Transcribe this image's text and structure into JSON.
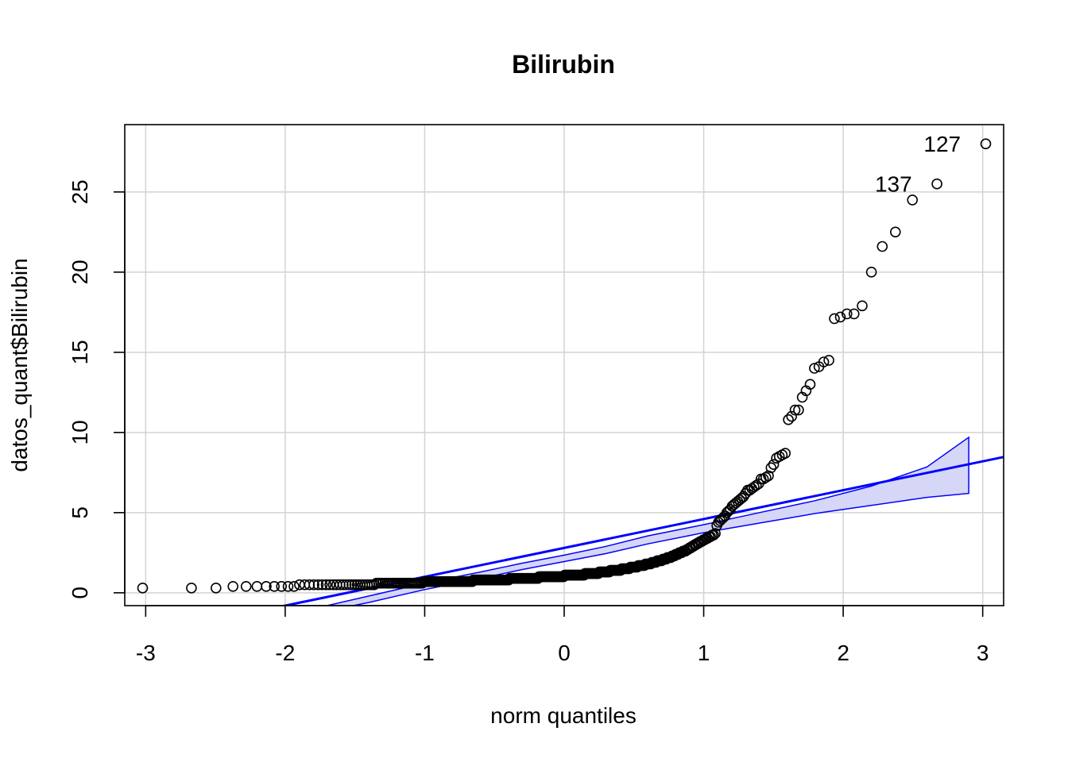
{
  "chart_data": {
    "type": "scatter",
    "title": "Bilirubin",
    "xlabel": "norm quantiles",
    "ylabel": "datos_quant$Bilirubin",
    "xlim": [
      -3.15,
      3.15
    ],
    "ylim": [
      -0.8,
      29.2
    ],
    "x_ticks": [
      -3,
      -2,
      -1,
      0,
      1,
      2,
      3
    ],
    "y_ticks": [
      0,
      5,
      10,
      15,
      20,
      25
    ],
    "x_tick_labels": [
      "-3",
      "-2",
      "-1",
      "0",
      "1",
      "2",
      "3"
    ],
    "y_tick_labels": [
      "0",
      "5",
      "10",
      "15",
      "20",
      "25"
    ],
    "grid": true,
    "sample_size": 418,
    "sample_quantiles": [
      0.3,
      0.3,
      0.3,
      0.4,
      0.4,
      0.4,
      0.4,
      0.4,
      0.4,
      0.4,
      0.4,
      0.5,
      0.5,
      0.5,
      0.5,
      0.5,
      0.5,
      0.5,
      0.5,
      0.5,
      0.5,
      0.5,
      0.5,
      0.5,
      0.5,
      0.5,
      0.5,
      0.5,
      0.5,
      0.5,
      0.5,
      0.5,
      0.5,
      0.5,
      0.5,
      0.6,
      0.6,
      0.6,
      0.6,
      0.6,
      0.6,
      0.6,
      0.6,
      0.6,
      0.6,
      0.6,
      0.6,
      0.6,
      0.6,
      0.6,
      0.6,
      0.6,
      0.6,
      0.6,
      0.6,
      0.6,
      0.6,
      0.6,
      0.6,
      0.6,
      0.6,
      0.6,
      0.7,
      0.7,
      0.7,
      0.7,
      0.7,
      0.7,
      0.7,
      0.7,
      0.7,
      0.7,
      0.7,
      0.7,
      0.7,
      0.7,
      0.7,
      0.7,
      0.7,
      0.7,
      0.7,
      0.7,
      0.7,
      0.7,
      0.7,
      0.7,
      0.7,
      0.7,
      0.7,
      0.7,
      0.7,
      0.7,
      0.7,
      0.7,
      0.7,
      0.7,
      0.7,
      0.7,
      0.7,
      0.7,
      0.7,
      0.7,
      0.8,
      0.8,
      0.8,
      0.8,
      0.8,
      0.8,
      0.8,
      0.8,
      0.8,
      0.8,
      0.8,
      0.8,
      0.8,
      0.8,
      0.8,
      0.8,
      0.8,
      0.8,
      0.8,
      0.8,
      0.8,
      0.8,
      0.8,
      0.8,
      0.8,
      0.8,
      0.8,
      0.8,
      0.8,
      0.8,
      0.8,
      0.8,
      0.8,
      0.8,
      0.8,
      0.8,
      0.9,
      0.9,
      0.9,
      0.9,
      0.9,
      0.9,
      0.9,
      0.9,
      0.9,
      0.9,
      0.9,
      0.9,
      0.9,
      0.9,
      0.9,
      0.9,
      0.9,
      0.9,
      0.9,
      0.9,
      0.9,
      0.9,
      0.9,
      0.9,
      0.9,
      0.9,
      0.9,
      0.9,
      0.9,
      0.9,
      0.9,
      0.9,
      1.0,
      1.0,
      1.0,
      1.0,
      1.0,
      1.0,
      1.0,
      1.0,
      1.0,
      1.0,
      1.0,
      1.0,
      1.0,
      1.0,
      1.0,
      1.0,
      1.0,
      1.0,
      1.0,
      1.0,
      1.0,
      1.0,
      1.0,
      1.0,
      1.0,
      1.0,
      1.0,
      1.0,
      1.0,
      1.1,
      1.1,
      1.1,
      1.1,
      1.1,
      1.1,
      1.1,
      1.1,
      1.1,
      1.1,
      1.1,
      1.1,
      1.1,
      1.1,
      1.1,
      1.1,
      1.1,
      1.1,
      1.1,
      1.1,
      1.1,
      1.1,
      1.1,
      1.2,
      1.2,
      1.2,
      1.2,
      1.2,
      1.2,
      1.2,
      1.2,
      1.2,
      1.2,
      1.2,
      1.2,
      1.2,
      1.2,
      1.2,
      1.2,
      1.3,
      1.3,
      1.3,
      1.3,
      1.3,
      1.3,
      1.3,
      1.3,
      1.3,
      1.3,
      1.3,
      1.3,
      1.4,
      1.4,
      1.4,
      1.4,
      1.4,
      1.4,
      1.4,
      1.4,
      1.4,
      1.4,
      1.4,
      1.4,
      1.5,
      1.5,
      1.5,
      1.5,
      1.5,
      1.5,
      1.5,
      1.5,
      1.5,
      1.6,
      1.6,
      1.6,
      1.6,
      1.6,
      1.6,
      1.6,
      1.6,
      1.7,
      1.7,
      1.7,
      1.7,
      1.7,
      1.7,
      1.7,
      1.8,
      1.8,
      1.8,
      1.8,
      1.8,
      1.8,
      1.9,
      1.9,
      1.9,
      1.9,
      1.9,
      2.0,
      2.0,
      2.0,
      2.0,
      2.0,
      2.1,
      2.1,
      2.1,
      2.1,
      2.2,
      2.2,
      2.2,
      2.2,
      2.3,
      2.3,
      2.3,
      2.4,
      2.4,
      2.4,
      2.5,
      2.5,
      2.5,
      2.6,
      2.6,
      2.6,
      2.7,
      2.7,
      2.8,
      2.8,
      2.9,
      2.9,
      3.0,
      3.0,
      3.1,
      3.1,
      3.2,
      3.2,
      3.3,
      3.3,
      3.4,
      3.4,
      3.5,
      3.5,
      3.6,
      3.6,
      3.7,
      4.2,
      4.4,
      4.5,
      4.6,
      4.7,
      4.8,
      5.0,
      5.1,
      5.2,
      5.4,
      5.5,
      5.6,
      5.7,
      5.8,
      5.9,
      6.0,
      6.2,
      6.4,
      6.4,
      6.5,
      6.6,
      6.7,
      6.8,
      7.1,
      7.1,
      7.2,
      7.3,
      7.8,
      8.0,
      8.4,
      8.5,
      8.6,
      8.7,
      10.8,
      11.0,
      11.4,
      11.4,
      12.2,
      12.6,
      13.0,
      14.0,
      14.1,
      14.4,
      14.5,
      17.1,
      17.2,
      17.4,
      17.4,
      17.9,
      20.0,
      21.6,
      22.5,
      24.5,
      25.5,
      28.0
    ],
    "reference_line": {
      "intercept": 2.8,
      "slope": 1.8
    },
    "confidence_band": {
      "x": [
        -1.8,
        -1.4,
        -1.0,
        -0.6,
        -0.3,
        0.0,
        0.3,
        0.6,
        1.0,
        1.4,
        1.8,
        2.2,
        2.6,
        2.9
      ],
      "lower": [
        -1.3,
        -0.6,
        0.2,
        0.9,
        1.45,
        1.95,
        2.45,
        3.05,
        3.75,
        4.35,
        4.95,
        5.45,
        5.95,
        6.2
      ],
      "upper": [
        -1.0,
        -0.2,
        0.6,
        1.3,
        1.85,
        2.35,
        2.9,
        3.55,
        4.25,
        5.0,
        5.75,
        6.65,
        7.85,
        9.7
      ]
    },
    "colors": {
      "points": "#000000",
      "line": "#0000ff",
      "band_fill": "#d6d6f7",
      "grid": "#d3d3d3"
    },
    "annotations": [
      {
        "text": "127",
        "x": 2.9,
        "y": 28.0
      },
      {
        "text": "137",
        "x": 2.55,
        "y": 25.5
      }
    ]
  }
}
